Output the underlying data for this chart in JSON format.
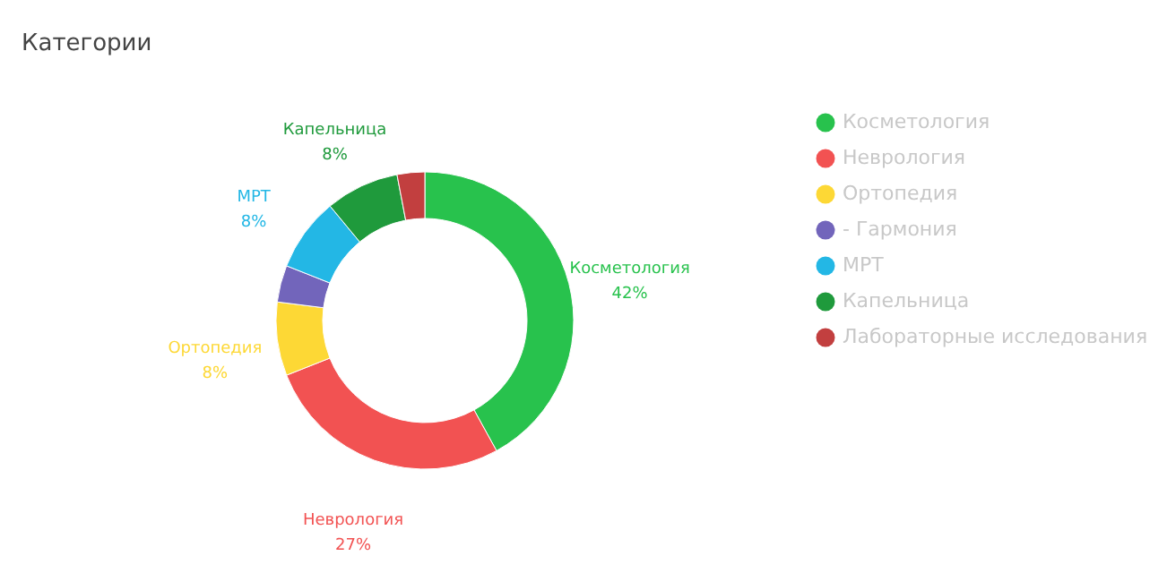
{
  "chart_data": {
    "type": "donut",
    "title": "Категории",
    "categories": [
      "Косметология",
      "Неврология",
      "Ортопедия",
      "- Гармония",
      "МРТ",
      "Капельница",
      "Лабораторные исследования"
    ],
    "values": [
      42,
      27,
      8,
      4,
      8,
      8,
      3
    ],
    "colors": [
      "#28c24d",
      "#f25252",
      "#fdd835",
      "#7265bb",
      "#23b7e5",
      "#1f9a3c",
      "#c23f3f"
    ],
    "value_labels": [
      "42%",
      "27%",
      "8%",
      null,
      "8%",
      "8%",
      null
    ],
    "legend": "right"
  }
}
